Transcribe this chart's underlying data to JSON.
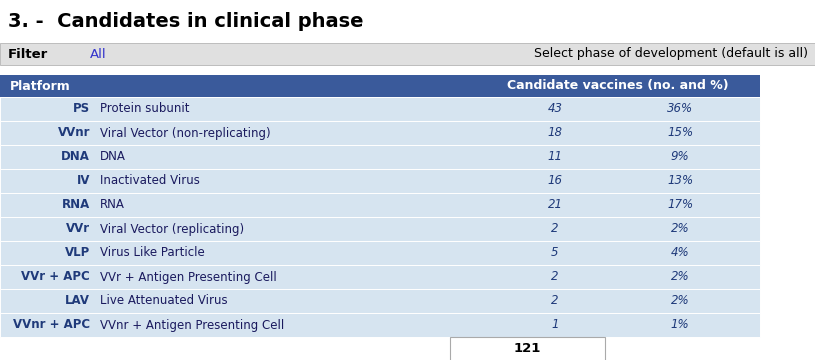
{
  "title": "3. -  Candidates in clinical phase",
  "filter_label": "Filter",
  "filter_value": "All",
  "select_text": "Select phase of development (default is all)",
  "header_col1": "Platform",
  "header_col2": "Candidate vaccines (no. and %)",
  "header_bg": "#3A5A9B",
  "header_fg": "#FFFFFF",
  "row_bg_light": "#D6E4F0",
  "row_fg_bold": "#1F3A7A",
  "row_fg_normal": "#1A1A5E",
  "filter_box_color": "#E0E0E0",
  "filter_text_color": "#3333CC",
  "filter_border_color": "#AAAAAA",
  "total_label": "121",
  "rows": [
    {
      "abbr": "PS",
      "full": "Protein subunit",
      "count": "43",
      "pct": "36%"
    },
    {
      "abbr": "VVnr",
      "full": "Viral Vector (non-replicating)",
      "count": "18",
      "pct": "15%"
    },
    {
      "abbr": "DNA",
      "full": "DNA",
      "count": "11",
      "pct": "9%"
    },
    {
      "abbr": "IV",
      "full": "Inactivated Virus",
      "count": "16",
      "pct": "13%"
    },
    {
      "abbr": "RNA",
      "full": "RNA",
      "count": "21",
      "pct": "17%"
    },
    {
      "abbr": "VVr",
      "full": "Viral Vector (replicating)",
      "count": "2",
      "pct": "2%"
    },
    {
      "abbr": "VLP",
      "full": "Virus Like Particle",
      "count": "5",
      "pct": "4%"
    },
    {
      "abbr": "VVr + APC",
      "full": "VVr + Antigen Presenting Cell",
      "count": "2",
      "pct": "2%"
    },
    {
      "abbr": "LAV",
      "full": "Live Attenuated Virus",
      "count": "2",
      "pct": "2%"
    },
    {
      "abbr": "VVnr + APC",
      "full": "VVnr + Antigen Presenting Cell",
      "count": "1",
      "pct": "1%"
    }
  ],
  "title_fontsize": 14,
  "header_fontsize": 9,
  "row_fontsize": 8.5,
  "select_fontsize": 9
}
